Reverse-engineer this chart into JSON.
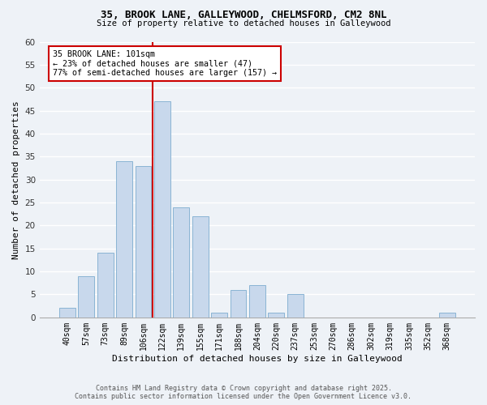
{
  "title1": "35, BROOK LANE, GALLEYWOOD, CHELMSFORD, CM2 8NL",
  "title2": "Size of property relative to detached houses in Galleywood",
  "xlabel": "Distribution of detached houses by size in Galleywood",
  "ylabel": "Number of detached properties",
  "bin_labels": [
    "40sqm",
    "57sqm",
    "73sqm",
    "89sqm",
    "106sqm",
    "122sqm",
    "139sqm",
    "155sqm",
    "171sqm",
    "188sqm",
    "204sqm",
    "220sqm",
    "237sqm",
    "253sqm",
    "270sqm",
    "286sqm",
    "302sqm",
    "319sqm",
    "335sqm",
    "352sqm",
    "368sqm"
  ],
  "bar_values": [
    2,
    9,
    14,
    34,
    33,
    47,
    24,
    22,
    1,
    6,
    7,
    1,
    5,
    0,
    0,
    0,
    0,
    0,
    0,
    0,
    1
  ],
  "bar_color": "#c8d8ec",
  "bar_edge_color": "#8ab4d4",
  "vline_x_idx": 4,
  "vline_color": "#cc0000",
  "ylim": [
    0,
    60
  ],
  "yticks": [
    0,
    5,
    10,
    15,
    20,
    25,
    30,
    35,
    40,
    45,
    50,
    55,
    60
  ],
  "annotation_title": "35 BROOK LANE: 101sqm",
  "annotation_line1": "← 23% of detached houses are smaller (47)",
  "annotation_line2": "77% of semi-detached houses are larger (157) →",
  "annotation_box_color": "#ffffff",
  "annotation_box_edge": "#cc0000",
  "footer1": "Contains HM Land Registry data © Crown copyright and database right 2025.",
  "footer2": "Contains public sector information licensed under the Open Government Licence v3.0.",
  "background_color": "#eef2f7"
}
